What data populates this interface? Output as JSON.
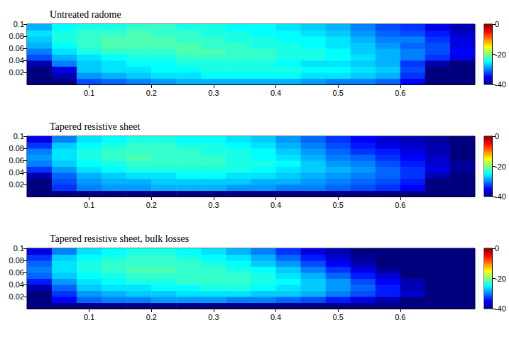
{
  "chart_data": [
    {
      "type": "heatmap",
      "title": "Untreated radome",
      "xlim": [
        0,
        0.72
      ],
      "xticks": [
        0.1,
        0.2,
        0.3,
        0.4,
        0.5,
        0.6
      ],
      "ylim": [
        0,
        0.1
      ],
      "yticks": [
        0.02,
        0.04,
        0.06,
        0.08,
        0.1
      ],
      "x": [
        0.02,
        0.06,
        0.1,
        0.14,
        0.18,
        0.22,
        0.26,
        0.3,
        0.34,
        0.38,
        0.42,
        0.46,
        0.5,
        0.54,
        0.58,
        0.62,
        0.66,
        0.7
      ],
      "y": [
        0.005,
        0.015,
        0.025,
        0.035,
        0.045,
        0.055,
        0.065,
        0.075,
        0.085,
        0.095
      ],
      "values": [
        [
          -40,
          -40,
          -32,
          -31,
          -30,
          -29,
          -28,
          -28,
          -28,
          -28,
          -28,
          -29,
          -30,
          -30,
          -31,
          -35,
          -40,
          -40
        ],
        [
          -40,
          -38,
          -29,
          -28,
          -27,
          -26,
          -26,
          -25,
          -25,
          -25,
          -25,
          -26,
          -26,
          -27,
          -28,
          -33,
          -40,
          -40
        ],
        [
          -40,
          -36,
          -27,
          -26,
          -26,
          -25,
          -25,
          -24,
          -24,
          -24,
          -24,
          -25,
          -25,
          -26,
          -27,
          -32,
          -40,
          -40
        ],
        [
          -38,
          -30,
          -27,
          -26,
          -25,
          -25,
          -24,
          -24,
          -24,
          -24,
          -25,
          -26,
          -26,
          -27,
          -28,
          -33,
          -38,
          -40
        ],
        [
          -32,
          -28,
          -26,
          -25,
          -24,
          -24,
          -23,
          -23,
          -23,
          -23,
          -24,
          -24,
          -25,
          -26,
          -28,
          -30,
          -33,
          -36
        ],
        [
          -30,
          -26,
          -24,
          -23,
          -23,
          -23,
          -22,
          -22,
          -23,
          -23,
          -24,
          -24,
          -25,
          -27,
          -28,
          -30,
          -32,
          -35
        ],
        [
          -28,
          -25,
          -23,
          -22,
          -22,
          -22,
          -22,
          -23,
          -23,
          -24,
          -24,
          -25,
          -26,
          -27,
          -29,
          -31,
          -32,
          -36
        ],
        [
          -27,
          -24,
          -23,
          -22,
          -22,
          -22,
          -23,
          -23,
          -24,
          -24,
          -25,
          -25,
          -26,
          -28,
          -30,
          -30,
          -33,
          -36
        ],
        [
          -26,
          -24,
          -23,
          -23,
          -22,
          -23,
          -23,
          -24,
          -24,
          -25,
          -25,
          -26,
          -27,
          -29,
          -31,
          -32,
          -34,
          -37
        ],
        [
          -28,
          -25,
          -24,
          -24,
          -23,
          -23,
          -24,
          -24,
          -25,
          -25,
          -26,
          -27,
          -28,
          -30,
          -32,
          -33,
          -36,
          -38
        ]
      ],
      "colorbar_range": [
        -40,
        0
      ],
      "colorbar_ticks": [
        -40,
        -20,
        0
      ]
    },
    {
      "type": "heatmap",
      "title": "Tapered resistive sheet",
      "xlim": [
        0,
        0.72
      ],
      "xticks": [
        0.1,
        0.2,
        0.3,
        0.4,
        0.5,
        0.6
      ],
      "ylim": [
        0,
        0.1
      ],
      "yticks": [
        0.02,
        0.04,
        0.06,
        0.08,
        0.1
      ],
      "x": [
        0.02,
        0.06,
        0.1,
        0.14,
        0.18,
        0.22,
        0.26,
        0.3,
        0.34,
        0.38,
        0.42,
        0.46,
        0.5,
        0.54,
        0.58,
        0.62,
        0.66,
        0.7
      ],
      "y": [
        0.005,
        0.015,
        0.025,
        0.035,
        0.045,
        0.055,
        0.065,
        0.075,
        0.085,
        0.095
      ],
      "values": [
        [
          -40,
          -40,
          -40,
          -40,
          -40,
          -40,
          -40,
          -40,
          -40,
          -40,
          -40,
          -40,
          -40,
          -40,
          -40,
          -40,
          -40,
          -40
        ],
        [
          -40,
          -33,
          -30,
          -29,
          -29,
          -28,
          -28,
          -28,
          -29,
          -29,
          -30,
          -30,
          -31,
          -32,
          -33,
          -35,
          -40,
          -40
        ],
        [
          -40,
          -32,
          -29,
          -28,
          -28,
          -27,
          -27,
          -27,
          -27,
          -28,
          -28,
          -29,
          -30,
          -31,
          -32,
          -34,
          -40,
          -40
        ],
        [
          -38,
          -31,
          -28,
          -27,
          -26,
          -26,
          -25,
          -25,
          -26,
          -26,
          -27,
          -28,
          -29,
          -30,
          -31,
          -33,
          -38,
          -40
        ],
        [
          -33,
          -29,
          -26,
          -25,
          -24,
          -24,
          -24,
          -24,
          -24,
          -25,
          -26,
          -27,
          -28,
          -29,
          -31,
          -33,
          -36,
          -39
        ],
        [
          -30,
          -27,
          -25,
          -24,
          -23,
          -23,
          -23,
          -23,
          -24,
          -24,
          -25,
          -27,
          -29,
          -30,
          -32,
          -34,
          -37,
          -39
        ],
        [
          -29,
          -26,
          -24,
          -23,
          -22,
          -23,
          -23,
          -23,
          -24,
          -25,
          -26,
          -28,
          -30,
          -31,
          -33,
          -35,
          -37,
          -40
        ],
        [
          -30,
          -26,
          -24,
          -23,
          -23,
          -23,
          -23,
          -24,
          -24,
          -25,
          -27,
          -29,
          -31,
          -33,
          -34,
          -36,
          -38,
          -40
        ],
        [
          -33,
          -27,
          -25,
          -24,
          -23,
          -23,
          -24,
          -24,
          -25,
          -26,
          -28,
          -30,
          -32,
          -34,
          -36,
          -37,
          -38,
          -40
        ],
        [
          -36,
          -30,
          -26,
          -25,
          -24,
          -24,
          -25,
          -25,
          -26,
          -27,
          -29,
          -31,
          -33,
          -35,
          -37,
          -38,
          -39,
          -40
        ]
      ],
      "colorbar_range": [
        -40,
        0
      ],
      "colorbar_ticks": [
        -40,
        -20,
        0
      ]
    },
    {
      "type": "heatmap",
      "title": "Tapered resistive sheet, bulk losses",
      "xlim": [
        0,
        0.72
      ],
      "xticks": [
        0.1,
        0.2,
        0.3,
        0.4,
        0.5,
        0.6
      ],
      "ylim": [
        0,
        0.1
      ],
      "yticks": [
        0.02,
        0.04,
        0.06,
        0.08,
        0.1
      ],
      "x": [
        0.02,
        0.06,
        0.1,
        0.14,
        0.18,
        0.22,
        0.26,
        0.3,
        0.34,
        0.38,
        0.42,
        0.46,
        0.5,
        0.54,
        0.58,
        0.62,
        0.66,
        0.7
      ],
      "y": [
        0.005,
        0.015,
        0.025,
        0.035,
        0.045,
        0.055,
        0.065,
        0.075,
        0.085,
        0.095
      ],
      "values": [
        [
          -40,
          -40,
          -40,
          -40,
          -40,
          -40,
          -40,
          -40,
          -40,
          -40,
          -40,
          -40,
          -40,
          -40,
          -40,
          -40,
          -40,
          -40
        ],
        [
          -40,
          -35,
          -31,
          -30,
          -30,
          -29,
          -29,
          -29,
          -30,
          -30,
          -31,
          -32,
          -34,
          -36,
          -38,
          -40,
          -40,
          -40
        ],
        [
          -40,
          -33,
          -29,
          -28,
          -27,
          -27,
          -26,
          -26,
          -26,
          -27,
          -27,
          -28,
          -30,
          -32,
          -34,
          -37,
          -40,
          -40
        ],
        [
          -38,
          -31,
          -27,
          -26,
          -26,
          -25,
          -25,
          -24,
          -24,
          -25,
          -26,
          -27,
          -29,
          -31,
          -34,
          -38,
          -40,
          -40
        ],
        [
          -34,
          -29,
          -26,
          -25,
          -24,
          -24,
          -23,
          -23,
          -23,
          -24,
          -25,
          -27,
          -29,
          -32,
          -35,
          -38,
          -40,
          -40
        ],
        [
          -31,
          -27,
          -25,
          -24,
          -23,
          -23,
          -23,
          -23,
          -23,
          -24,
          -26,
          -28,
          -31,
          -34,
          -37,
          -40,
          -40,
          -40
        ],
        [
          -30,
          -26,
          -24,
          -23,
          -22,
          -22,
          -23,
          -23,
          -24,
          -25,
          -27,
          -30,
          -33,
          -36,
          -39,
          -40,
          -40,
          -40
        ],
        [
          -31,
          -26,
          -24,
          -23,
          -23,
          -23,
          -23,
          -24,
          -25,
          -27,
          -29,
          -32,
          -35,
          -38,
          -40,
          -40,
          -40,
          -40
        ],
        [
          -33,
          -27,
          -25,
          -24,
          -23,
          -23,
          -24,
          -25,
          -26,
          -28,
          -31,
          -34,
          -37,
          -39,
          -40,
          -40,
          -40,
          -40
        ],
        [
          -36,
          -30,
          -26,
          -25,
          -24,
          -24,
          -25,
          -26,
          -28,
          -30,
          -33,
          -36,
          -38,
          -40,
          -40,
          -40,
          -40,
          -40
        ]
      ],
      "colorbar_range": [
        -40,
        0
      ],
      "colorbar_ticks": [
        -40,
        -20,
        0
      ]
    }
  ]
}
